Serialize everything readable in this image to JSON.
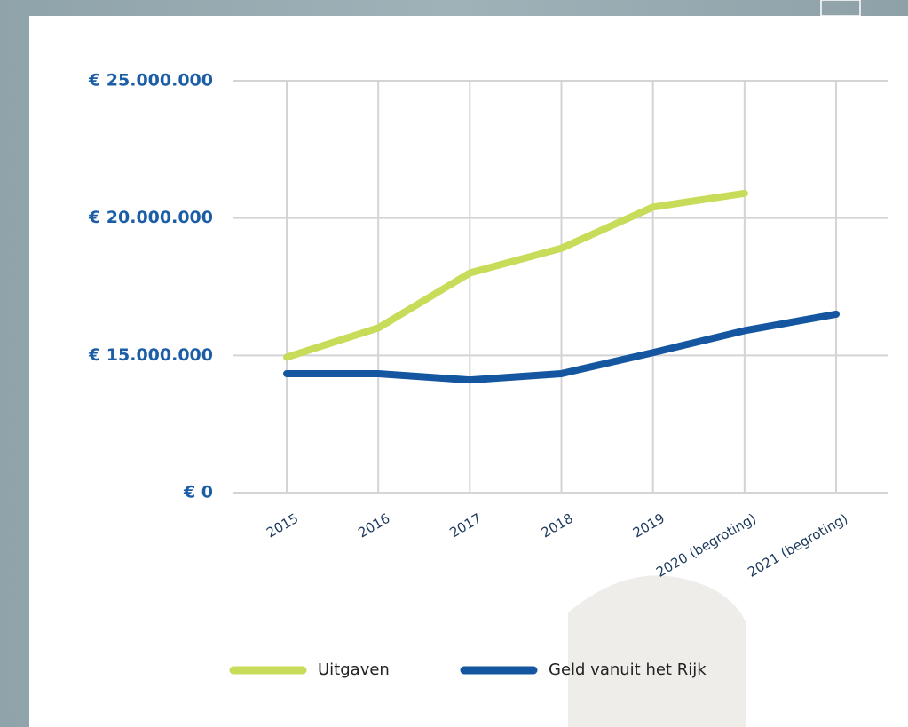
{
  "chart_data": {
    "type": "line",
    "categories": [
      "2015",
      "2016",
      "2017",
      "2018",
      "2019",
      "2020 (begroting)",
      "2021 (begroting)"
    ],
    "series": [
      {
        "name": "Uitgaven",
        "color": "#c8dc5a",
        "values": [
          14800000,
          16000000,
          18000000,
          18900000,
          20400000,
          20900000,
          null
        ]
      },
      {
        "name": "Geld vanuit het Rijk",
        "color": "#1456a0",
        "values": [
          13000000,
          13000000,
          12300000,
          13000000,
          15100000,
          15900000,
          16500000
        ]
      }
    ],
    "ylim": [
      0,
      25000000
    ],
    "yticks": [
      {
        "value": 0,
        "label": "€ 0"
      },
      {
        "value": 15000000,
        "label": "€ 15.000.000"
      },
      {
        "value": 20000000,
        "label": "€ 20.000.000"
      },
      {
        "value": 25000000,
        "label": "€ 25.000.000"
      }
    ],
    "grid": true
  }
}
